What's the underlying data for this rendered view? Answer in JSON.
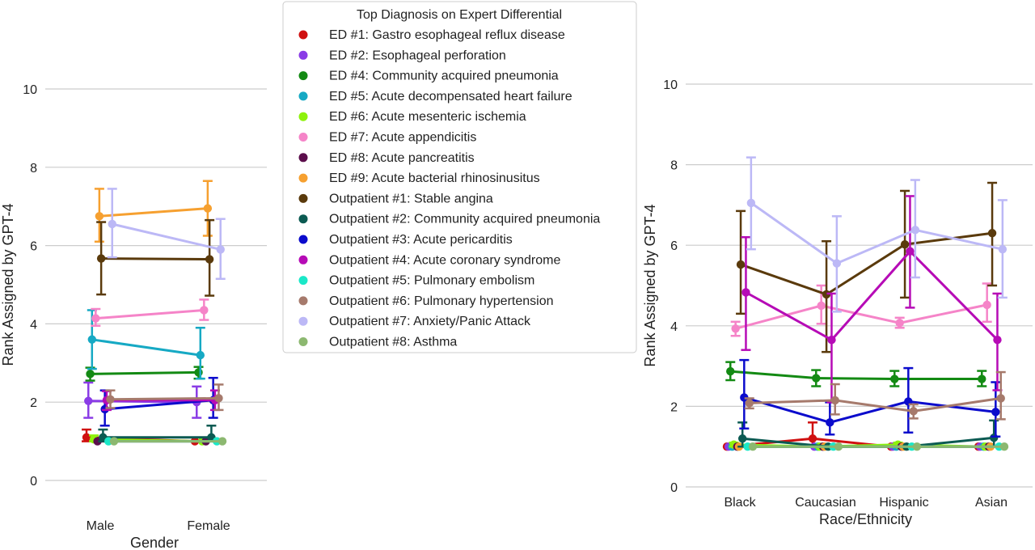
{
  "legend": {
    "title": "Top Diagnosis on Expert Differential",
    "position": "top-center"
  },
  "series_styles": [
    {
      "name": "ED #1: Gastro esophageal reflux disease",
      "color": "#d01010"
    },
    {
      "name": "ED #2: Esophageal perforation",
      "color": "#8a3ce6"
    },
    {
      "name": "ED #4: Community acquired pneumonia",
      "color": "#138a13"
    },
    {
      "name": "ED #5: Acute decompensated heart failure",
      "color": "#16a9c4"
    },
    {
      "name": "ED #6: Acute mesenteric ischemia",
      "color": "#8ef20c"
    },
    {
      "name": "ED #7: Acute appendicitis",
      "color": "#f584c8"
    },
    {
      "name": "ED #8: Acute pancreatitis",
      "color": "#5c0e4c"
    },
    {
      "name": "ED #9: Acute bacterial rhinosinusitus",
      "color": "#f6a030"
    },
    {
      "name": "Outpatient #1: Stable angina",
      "color": "#5a3a0c"
    },
    {
      "name": "Outpatient #2: Community acquired pneumonia",
      "color": "#0b5a52"
    },
    {
      "name": "Outpatient #3: Acute pericarditis",
      "color": "#0b0bcc"
    },
    {
      "name": "Outpatient #4: Acute coronary syndrome",
      "color": "#b60bb6"
    },
    {
      "name": "Outpatient #5: Pulmonary embolism",
      "color": "#1ae8c8"
    },
    {
      "name": "Outpatient #6: Pulmonary hypertension",
      "color": "#a67a6c"
    },
    {
      "name": "Outpatient #7: Anxiety/Panic Attack",
      "color": "#bcb8f6"
    },
    {
      "name": "Outpatient #8: Asthma",
      "color": "#8cb870"
    }
  ],
  "chart_data": [
    {
      "type": "line",
      "subtype": "point-plot with error bars",
      "xlabel": "Gender",
      "ylabel": "Rank Assigned by GPT-4",
      "categories": [
        "Male",
        "Female"
      ],
      "ylim": [
        0,
        10.5
      ],
      "yticks": [
        0,
        2,
        4,
        6,
        8,
        10
      ],
      "grid": "horizontal",
      "series": [
        {
          "name": "ED #1: Gastro esophageal reflux disease",
          "values": [
            1.1,
            1.0
          ],
          "err_low": [
            1.0,
            1.0
          ],
          "err_high": [
            1.3,
            1.0
          ]
        },
        {
          "name": "ED #2: Esophageal perforation",
          "values": [
            2.03,
            2.0
          ],
          "err_low": [
            1.6,
            1.6
          ],
          "err_high": [
            2.5,
            2.4
          ]
        },
        {
          "name": "ED #4: Community acquired pneumonia",
          "values": [
            2.72,
            2.76
          ],
          "err_low": [
            2.55,
            2.6
          ],
          "err_high": [
            2.88,
            2.9
          ]
        },
        {
          "name": "ED #5: Acute decompensated heart failure",
          "values": [
            3.6,
            3.2
          ],
          "err_low": [
            2.85,
            2.6
          ],
          "err_high": [
            4.35,
            3.9
          ]
        },
        {
          "name": "ED #6: Acute mesenteric ischemia",
          "values": [
            1.05,
            1.0
          ],
          "err_low": [
            1.0,
            1.0
          ],
          "err_high": [
            1.15,
            1.0
          ]
        },
        {
          "name": "ED #7: Acute appendicitis",
          "values": [
            4.14,
            4.35
          ],
          "err_low": [
            3.95,
            4.1
          ],
          "err_high": [
            4.38,
            4.62
          ]
        },
        {
          "name": "ED #8: Acute pancreatitis",
          "values": [
            1.0,
            1.0
          ],
          "err_low": [
            1.0,
            1.0
          ],
          "err_high": [
            1.0,
            1.0
          ]
        },
        {
          "name": "ED #9: Acute bacterial rhinosinusitus",
          "values": [
            6.75,
            6.95
          ],
          "err_low": [
            6.1,
            6.25
          ],
          "err_high": [
            7.45,
            7.65
          ]
        },
        {
          "name": "Outpatient #1: Stable angina",
          "values": [
            5.67,
            5.65
          ],
          "err_low": [
            4.75,
            4.72
          ],
          "err_high": [
            6.6,
            6.65
          ]
        },
        {
          "name": "Outpatient #2: Community acquired pneumonia",
          "values": [
            1.1,
            1.1
          ],
          "err_low": [
            1.0,
            1.0
          ],
          "err_high": [
            1.3,
            1.4
          ]
        },
        {
          "name": "Outpatient #3: Acute pericarditis",
          "values": [
            1.82,
            2.05
          ],
          "err_low": [
            1.4,
            1.6
          ],
          "err_high": [
            2.3,
            2.62
          ]
        },
        {
          "name": "Outpatient #4: Acute coronary syndrome",
          "values": [
            2.05,
            2.05
          ],
          "err_low": [
            1.8,
            1.8
          ],
          "err_high": [
            2.28,
            2.3
          ]
        },
        {
          "name": "Outpatient #5: Pulmonary embolism",
          "values": [
            1.0,
            1.0
          ],
          "err_low": [
            1.0,
            1.0
          ],
          "err_high": [
            1.0,
            1.0
          ]
        },
        {
          "name": "Outpatient #6: Pulmonary hypertension",
          "values": [
            2.07,
            2.1
          ],
          "err_low": [
            1.85,
            1.8
          ],
          "err_high": [
            2.3,
            2.45
          ]
        },
        {
          "name": "Outpatient #7: Anxiety/Panic Attack",
          "values": [
            6.55,
            5.9
          ],
          "err_low": [
            5.7,
            5.15
          ],
          "err_high": [
            7.45,
            6.68
          ]
        },
        {
          "name": "Outpatient #8: Asthma",
          "values": [
            1.0,
            1.0
          ],
          "err_low": [
            1.0,
            1.0
          ],
          "err_high": [
            1.0,
            1.0
          ]
        }
      ]
    },
    {
      "type": "line",
      "subtype": "point-plot with error bars",
      "xlabel": "Race/Ethnicity",
      "ylabel": "Rank Assigned by GPT-4",
      "categories": [
        "Black",
        "Caucasian",
        "Hispanic",
        "Asian"
      ],
      "ylim": [
        0,
        10.2
      ],
      "yticks": [
        0,
        2,
        4,
        6,
        8,
        10
      ],
      "grid": "horizontal",
      "series": [
        {
          "name": "ED #1: Gastro esophageal reflux disease",
          "values": [
            1.0,
            1.2,
            1.0,
            1.0
          ],
          "err_low": [
            1.0,
            1.0,
            1.0,
            1.0
          ],
          "err_high": [
            1.0,
            1.6,
            1.0,
            1.0
          ]
        },
        {
          "name": "ED #2: Esophageal perforation",
          "values": [
            1.0,
            1.0,
            1.0,
            1.0
          ],
          "err_low": [
            1.0,
            1.0,
            1.0,
            1.0
          ],
          "err_high": [
            1.0,
            1.0,
            1.0,
            1.0
          ]
        },
        {
          "name": "ED #4: Community acquired pneumonia",
          "values": [
            2.87,
            2.7,
            2.68,
            2.68
          ],
          "err_low": [
            2.65,
            2.5,
            2.5,
            2.5
          ],
          "err_high": [
            3.1,
            2.9,
            2.88,
            2.88
          ]
        },
        {
          "name": "ED #5: Acute decompensated heart failure",
          "values": [
            1.0,
            1.0,
            1.0,
            1.0
          ],
          "err_low": [
            1.0,
            1.0,
            1.0,
            1.0
          ],
          "err_high": [
            1.0,
            1.0,
            1.0,
            1.0
          ]
        },
        {
          "name": "ED #6: Acute mesenteric ischemia",
          "values": [
            1.05,
            1.0,
            1.05,
            1.0
          ],
          "err_low": [
            1.0,
            1.0,
            1.0,
            1.0
          ],
          "err_high": [
            1.1,
            1.0,
            1.1,
            1.0
          ]
        },
        {
          "name": "ED #7: Acute appendicitis",
          "values": [
            3.93,
            4.5,
            4.07,
            4.52
          ],
          "err_low": [
            3.75,
            4.05,
            3.95,
            4.1
          ],
          "err_high": [
            4.1,
            5.0,
            4.2,
            5.05
          ]
        },
        {
          "name": "ED #8: Acute pancreatitis",
          "values": [
            1.0,
            1.0,
            1.0,
            1.0
          ],
          "err_low": [
            1.0,
            1.0,
            1.0,
            1.0
          ],
          "err_high": [
            1.0,
            1.0,
            1.0,
            1.0
          ]
        },
        {
          "name": "ED #9: Acute bacterial rhinosinusitus",
          "values": [
            1.0,
            1.0,
            1.0,
            1.0
          ],
          "err_low": [
            1.0,
            1.0,
            1.0,
            1.0
          ],
          "err_high": [
            1.0,
            1.0,
            1.0,
            1.0
          ]
        },
        {
          "name": "Outpatient #1: Stable angina",
          "values": [
            5.52,
            4.78,
            6.02,
            6.3
          ],
          "err_low": [
            4.3,
            3.35,
            4.7,
            5.0
          ],
          "err_high": [
            6.85,
            6.1,
            7.35,
            7.55
          ]
        },
        {
          "name": "Outpatient #2: Community acquired pneumonia",
          "values": [
            1.2,
            1.0,
            1.0,
            1.22
          ],
          "err_low": [
            1.0,
            1.0,
            1.0,
            1.0
          ],
          "err_high": [
            1.6,
            1.0,
            1.0,
            1.65
          ]
        },
        {
          "name": "Outpatient #3: Acute pericarditis",
          "values": [
            2.22,
            1.6,
            2.12,
            1.86
          ],
          "err_low": [
            1.45,
            1.3,
            1.35,
            1.25
          ],
          "err_high": [
            3.15,
            2.1,
            2.95,
            2.6
          ]
        },
        {
          "name": "Outpatient #4: Acute coronary syndrome",
          "values": [
            4.83,
            3.65,
            5.85,
            3.65
          ],
          "err_low": [
            3.4,
            2.1,
            4.45,
            2.4
          ],
          "err_high": [
            6.2,
            4.8,
            7.22,
            4.8
          ]
        },
        {
          "name": "Outpatient #5: Pulmonary embolism",
          "values": [
            1.0,
            1.0,
            1.0,
            1.0
          ],
          "err_low": [
            1.0,
            1.0,
            1.0,
            1.0
          ],
          "err_high": [
            1.0,
            1.0,
            1.0,
            1.0
          ]
        },
        {
          "name": "Outpatient #6: Pulmonary hypertension",
          "values": [
            2.08,
            2.15,
            1.88,
            2.2
          ],
          "err_low": [
            1.95,
            1.8,
            1.7,
            1.68
          ],
          "err_high": [
            2.2,
            2.55,
            2.05,
            2.85
          ]
        },
        {
          "name": "Outpatient #7: Anxiety/Panic Attack",
          "values": [
            7.05,
            5.55,
            6.38,
            5.9
          ],
          "err_low": [
            5.9,
            4.35,
            5.2,
            4.7
          ],
          "err_high": [
            8.18,
            6.72,
            7.62,
            7.12
          ]
        },
        {
          "name": "Outpatient #8: Asthma",
          "values": [
            1.0,
            1.0,
            1.0,
            1.0
          ],
          "err_low": [
            1.0,
            1.0,
            1.0,
            1.0
          ],
          "err_high": [
            1.0,
            1.0,
            1.0,
            1.0
          ]
        }
      ]
    }
  ]
}
